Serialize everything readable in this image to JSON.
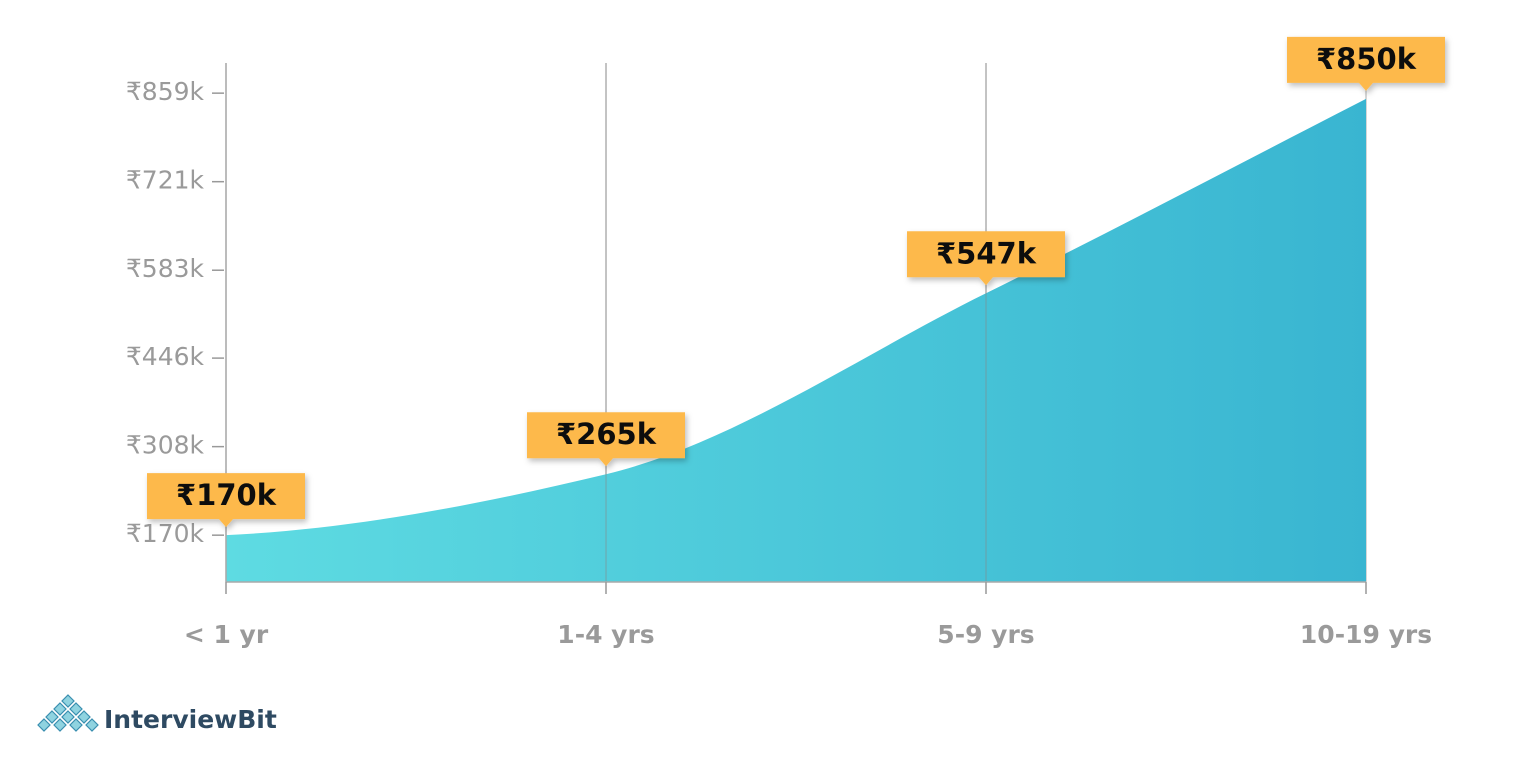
{
  "chart_data": {
    "type": "area",
    "categories": [
      "< 1 yr",
      "1-4 yrs",
      "5-9 yrs",
      "10-19 yrs"
    ],
    "values": [
      170,
      265,
      547,
      850
    ],
    "value_labels": [
      "₹170k",
      "₹265k",
      "₹547k",
      "₹850k"
    ],
    "ylim": [
      97,
      906
    ],
    "yticks": [
      {
        "value": 170,
        "label": "₹170k"
      },
      {
        "value": 308,
        "label": "₹308k"
      },
      {
        "value": 446,
        "label": "₹446k"
      },
      {
        "value": 583,
        "label": "₹583k"
      },
      {
        "value": 721,
        "label": "₹721k"
      },
      {
        "value": 859,
        "label": "₹859k"
      }
    ],
    "gradient": [
      "#5edbe2",
      "#39b5d1"
    ],
    "label_color": "#fdb94c",
    "grid": true
  },
  "logo": "InterviewBit"
}
